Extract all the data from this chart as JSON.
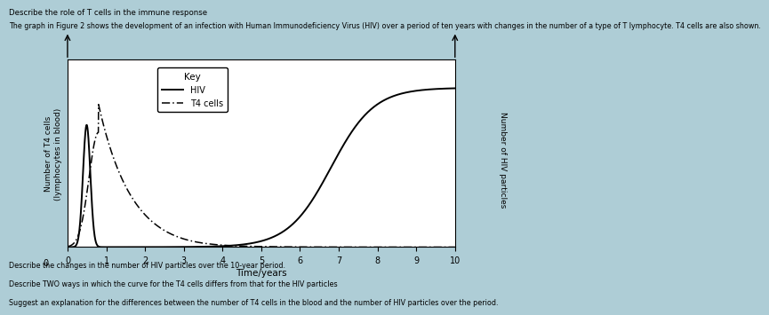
{
  "title_line1": "Describe the role of T cells in the immune response",
  "title_line2": "The graph in Figure 2 shows the development of an infection with Human Immunodeficiency Virus (HIV) over a period of ten years with changes in the number of a type of T lymphocyte. T4 cells are also shown.",
  "xlabel": "Time/years",
  "ylabel_left": "Number of T4 cells\n(lymphocytes in blood)",
  "ylabel_right": "Number of HIV particles",
  "xlim": [
    0,
    10
  ],
  "xticks": [
    0,
    1,
    2,
    3,
    4,
    5,
    6,
    7,
    8,
    9,
    10
  ],
  "key_hiv": "HIV",
  "key_t4": "T4 cells",
  "footer1": "Describe the changes in the number of HIV particles over the 10-year period.",
  "footer2": "Describe TWO ways in which the curve for the T4 cells differs from that for the HIV particles",
  "footer3": "Suggest an explanation for the differences between the number of T4 cells in the blood and the number of HIV particles over the period.",
  "background_color": "#aecdd6",
  "plot_background": "#ffffff",
  "line_color": "#000000"
}
